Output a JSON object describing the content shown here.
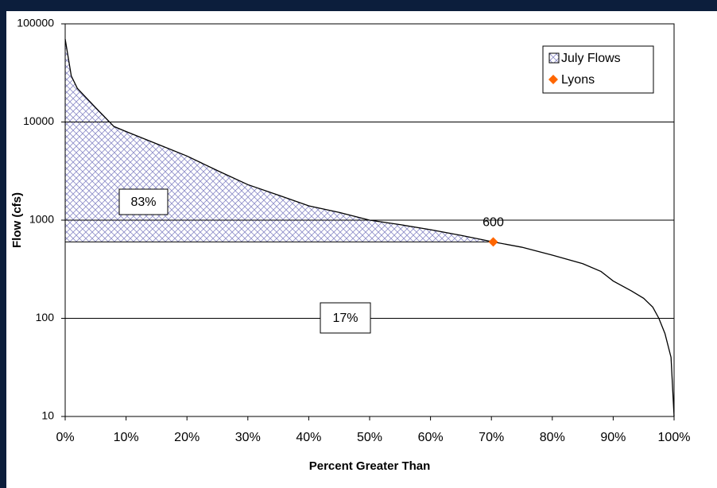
{
  "chart_data": {
    "type": "line",
    "ylabel": "Flow (cfs)",
    "xlabel": "Percent Greater Than",
    "log_y": true,
    "grid": true,
    "legend": "top right",
    "xlim": [
      0,
      100
    ],
    "xticks": [
      {
        "value": 0,
        "label": "0%"
      },
      {
        "value": 10,
        "label": "10%"
      },
      {
        "value": 20,
        "label": "20%"
      },
      {
        "value": 30,
        "label": "30%"
      },
      {
        "value": 40,
        "label": "40%"
      },
      {
        "value": 50,
        "label": "50%"
      },
      {
        "value": 60,
        "label": "60%"
      },
      {
        "value": 70,
        "label": "70%"
      },
      {
        "value": 80,
        "label": "80%"
      },
      {
        "value": 90,
        "label": "90%"
      },
      {
        "value": 100,
        "label": "100%"
      }
    ],
    "ylim": [
      10,
      100000
    ],
    "yticks": [
      10,
      100,
      1000,
      10000,
      100000
    ],
    "series": [
      {
        "name": "July Flows",
        "color": "#000000",
        "fill_color": "#8c8cc8",
        "x": [
          0,
          1,
          2,
          5,
          8,
          10,
          15,
          20,
          25,
          30,
          35,
          40,
          45,
          50,
          55,
          60,
          65,
          70.3,
          75,
          80,
          85,
          88,
          90,
          93,
          95,
          96.5,
          97.5,
          98.5,
          99.5,
          100
        ],
        "values": [
          70000,
          29500,
          22000,
          14000,
          9000,
          8000,
          6000,
          4500,
          3200,
          2300,
          1800,
          1400,
          1200,
          1000,
          900,
          800,
          700,
          600,
          530,
          440,
          360,
          300,
          240,
          190,
          160,
          130,
          100,
          70,
          40,
          10
        ]
      },
      {
        "name": "Lyons",
        "color": "#ff6600",
        "x": [
          70.3
        ],
        "values": [
          600
        ]
      }
    ],
    "annotations": [
      "83%",
      "17%"
    ]
  }
}
